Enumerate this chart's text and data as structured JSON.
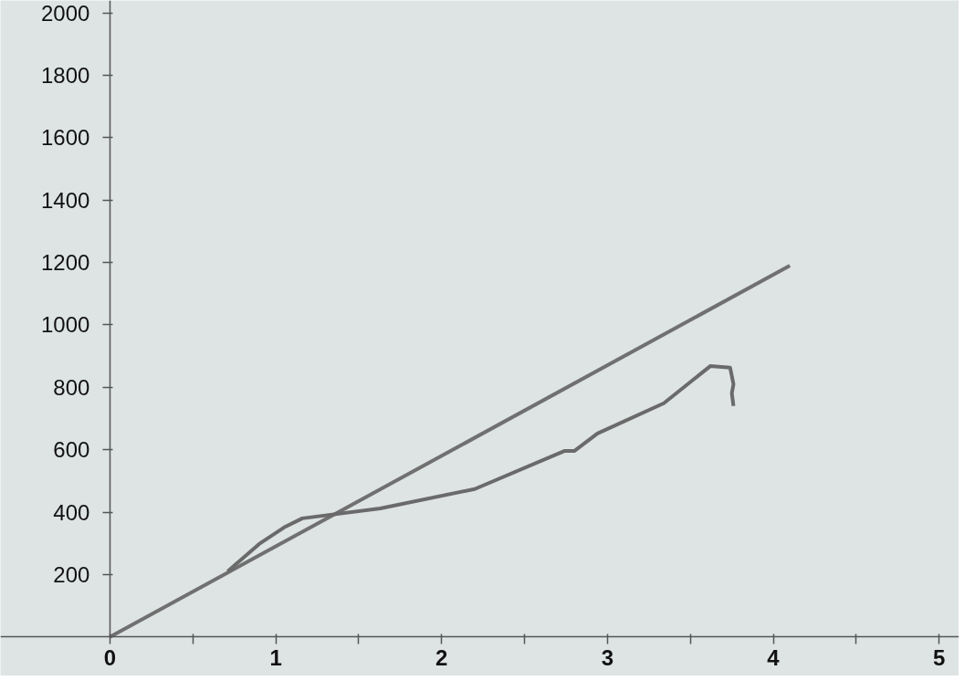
{
  "chart_data": {
    "type": "line",
    "xlim": [
      -0.66,
      5.12
    ],
    "ylim": [
      -125,
      2040
    ],
    "xticks": [
      0,
      {
        "value": 0.5,
        "label": null
      },
      1,
      {
        "value": 1.5,
        "label": null
      },
      2,
      {
        "value": 2.5,
        "label": null
      },
      3,
      {
        "value": 3.5,
        "label": null
      },
      4,
      {
        "value": 4.5,
        "label": null
      },
      5
    ],
    "yticks": [
      200,
      400,
      600,
      800,
      1000,
      1200,
      1400,
      1600,
      1800,
      2000
    ],
    "grid": false,
    "marker": "none",
    "line_style": "solid",
    "series": [
      {
        "color": "#707070",
        "x": [
          0,
          4.1
        ],
        "values": [
          0,
          1190
        ]
      },
      {
        "color": "#6a6a6a",
        "x": [
          0.71,
          0.9,
          1.05,
          1.16,
          1.63,
          2.2,
          2.74,
          2.8,
          2.94,
          3.34,
          3.62,
          3.74,
          3.76,
          3.75,
          3.76
        ],
        "values": [
          210,
          298,
          351,
          380,
          412,
          474,
          596,
          596,
          652,
          749,
          868,
          863,
          810,
          781,
          740
        ]
      }
    ]
  }
}
